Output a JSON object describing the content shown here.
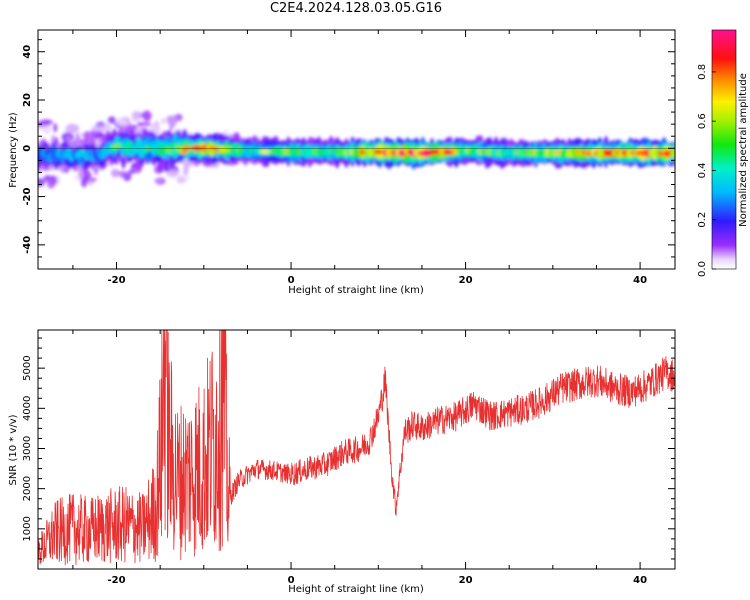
{
  "title": "C2E4.2024.128.03.05.G16",
  "chart_data": [
    {
      "type": "heatmap",
      "xlabel": "Height of straight line (km)",
      "ylabel": "Frequency (Hz)",
      "xlim": [
        -29,
        44
      ],
      "ylim": [
        -50,
        49
      ],
      "xticks": [
        -20,
        0,
        20,
        40
      ],
      "yticks": [
        -40,
        -20,
        0,
        20,
        40
      ],
      "colorbar": {
        "label": "Normalized spectral amplitude",
        "range": [
          0,
          0.97
        ],
        "ticks": [
          "0.0",
          "0.2",
          "0.4",
          "0.6",
          "0.8"
        ],
        "colormap": "rainbow (white-violet-blue-cyan-green-yellow-red-pink)"
      },
      "ridge": [
        {
          "x": -29,
          "y": -3,
          "amp": 0.3
        },
        {
          "x": -25,
          "y": -3,
          "amp": 0.35
        },
        {
          "x": -22,
          "y": -3,
          "amp": 0.3
        },
        {
          "x": -20,
          "y": 1,
          "amp": 0.45
        },
        {
          "x": -15,
          "y": 0,
          "amp": 0.5
        },
        {
          "x": -12,
          "y": 0,
          "amp": 0.7
        },
        {
          "x": -10,
          "y": 0,
          "amp": 0.85
        },
        {
          "x": -5,
          "y": -1,
          "amp": 0.45
        },
        {
          "x": 0,
          "y": -1.5,
          "amp": 0.55
        },
        {
          "x": 5,
          "y": -1.5,
          "amp": 0.5
        },
        {
          "x": 10,
          "y": -1.5,
          "amp": 0.85
        },
        {
          "x": 15,
          "y": -2,
          "amp": 0.95
        },
        {
          "x": 20,
          "y": -1,
          "amp": 0.6
        },
        {
          "x": 25,
          "y": -2,
          "amp": 0.5
        },
        {
          "x": 30,
          "y": -2,
          "amp": 0.65
        },
        {
          "x": 35,
          "y": -2,
          "amp": 0.75
        },
        {
          "x": 40,
          "y": -2,
          "amp": 0.85
        },
        {
          "x": 43.5,
          "y": -2,
          "amp": 0.85
        }
      ]
    },
    {
      "type": "line",
      "xlabel": "Height of straight line (km)",
      "ylabel": "SNR (10 * v/v)",
      "xlim": [
        -29,
        44
      ],
      "ylim": [
        0,
        5950
      ],
      "xticks": [
        -20,
        0,
        20,
        40
      ],
      "yticks": [
        1000,
        2000,
        3000,
        4000,
        5000
      ],
      "color": "#e83030",
      "series": [
        {
          "name": "",
          "x": [
            -29,
            -27,
            -25,
            -23,
            -21,
            -19,
            -17,
            -15.5,
            -14.8,
            -14.4,
            -14,
            -13,
            -12,
            -10,
            -8.5,
            -7.8,
            -7.2,
            -6,
            -4,
            -2,
            0,
            2,
            4,
            6,
            8,
            9,
            10,
            10.8,
            11.5,
            12,
            13,
            14,
            15,
            17,
            19,
            21,
            23,
            25,
            27,
            29,
            31,
            33,
            35,
            37,
            39,
            41,
            43,
            44
          ],
          "values": [
            400,
            900,
            1000,
            950,
            1050,
            1100,
            1000,
            1500,
            3200,
            5950,
            3000,
            2200,
            2300,
            2600,
            3400,
            5100,
            1700,
            2200,
            2500,
            2450,
            2350,
            2500,
            2600,
            2900,
            3000,
            3200,
            3800,
            4700,
            2500,
            1500,
            3400,
            3600,
            3500,
            3700,
            3800,
            4100,
            3800,
            3900,
            4000,
            4200,
            4500,
            4600,
            4700,
            4500,
            4400,
            4600,
            4900,
            4800
          ]
        }
      ]
    }
  ]
}
